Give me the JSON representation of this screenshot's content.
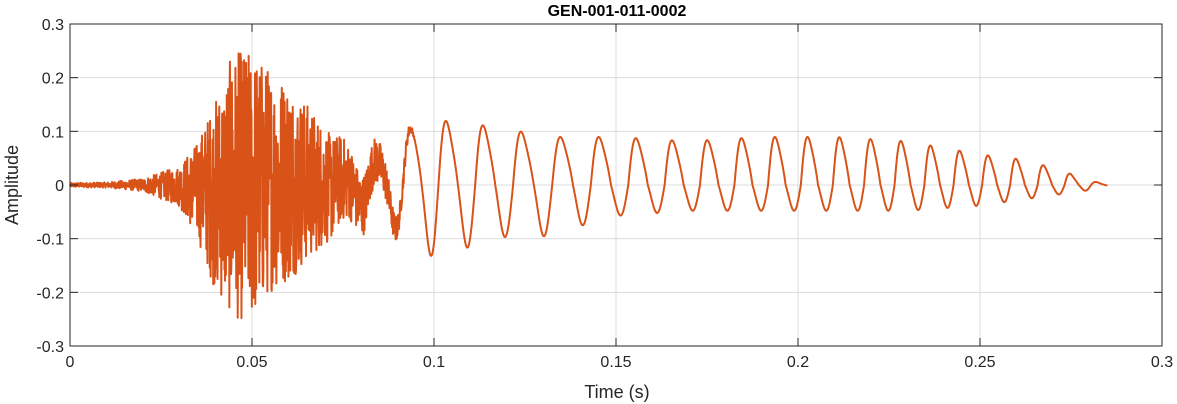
{
  "chart_data": {
    "type": "line",
    "title": "GEN-001-011-0002",
    "xlabel": "Time (s)",
    "ylabel": "Amplitude",
    "xlim": [
      0,
      0.3
    ],
    "ylim": [
      -0.3,
      0.3
    ],
    "xticks": [
      0,
      0.05,
      0.1,
      0.15,
      0.2,
      0.25,
      0.3
    ],
    "xtick_labels": [
      "0",
      "0.05",
      "0.1",
      "0.15",
      "0.2",
      "0.25",
      "0.3"
    ],
    "yticks": [
      -0.3,
      -0.2,
      -0.1,
      0,
      0.1,
      0.2,
      0.3
    ],
    "ytick_labels": [
      "-0.3",
      "-0.2",
      "-0.1",
      "0",
      "0.1",
      "0.2",
      "0.3"
    ],
    "grid": true,
    "series": [
      {
        "color": "#d95319",
        "signal_start": 0.0,
        "signal_end": 0.285,
        "envelope": {
          "t": [
            0,
            0.01,
            0.02,
            0.03,
            0.035,
            0.04,
            0.045,
            0.05,
            0.055,
            0.06,
            0.07,
            0.08,
            0.09,
            0.1,
            0.11,
            0.12,
            0.13,
            0.15,
            0.17,
            0.19,
            0.21,
            0.23,
            0.25,
            0.26,
            0.27,
            0.28,
            0.285
          ],
          "pos": [
            0.004,
            0.005,
            0.012,
            0.035,
            0.08,
            0.16,
            0.25,
            0.25,
            0.22,
            0.2,
            0.11,
            0.08,
            0.13,
            0.15,
            0.14,
            0.13,
            0.11,
            0.11,
            0.1,
            0.11,
            0.11,
            0.1,
            0.07,
            0.06,
            0.04,
            0.01,
            0.002
          ],
          "neg": [
            0.004,
            0.005,
            0.012,
            0.04,
            0.1,
            0.2,
            0.25,
            0.26,
            0.2,
            0.18,
            0.11,
            0.1,
            0.11,
            0.14,
            0.12,
            0.1,
            0.1,
            0.06,
            0.05,
            0.05,
            0.05,
            0.05,
            0.04,
            0.03,
            0.02,
            0.01,
            0.002
          ]
        },
        "pitch_hz": {
          "t": [
            0.07,
            0.13,
            0.2,
            0.285
          ],
          "f": [
            110,
            92,
            112,
            140
          ]
        }
      }
    ]
  }
}
